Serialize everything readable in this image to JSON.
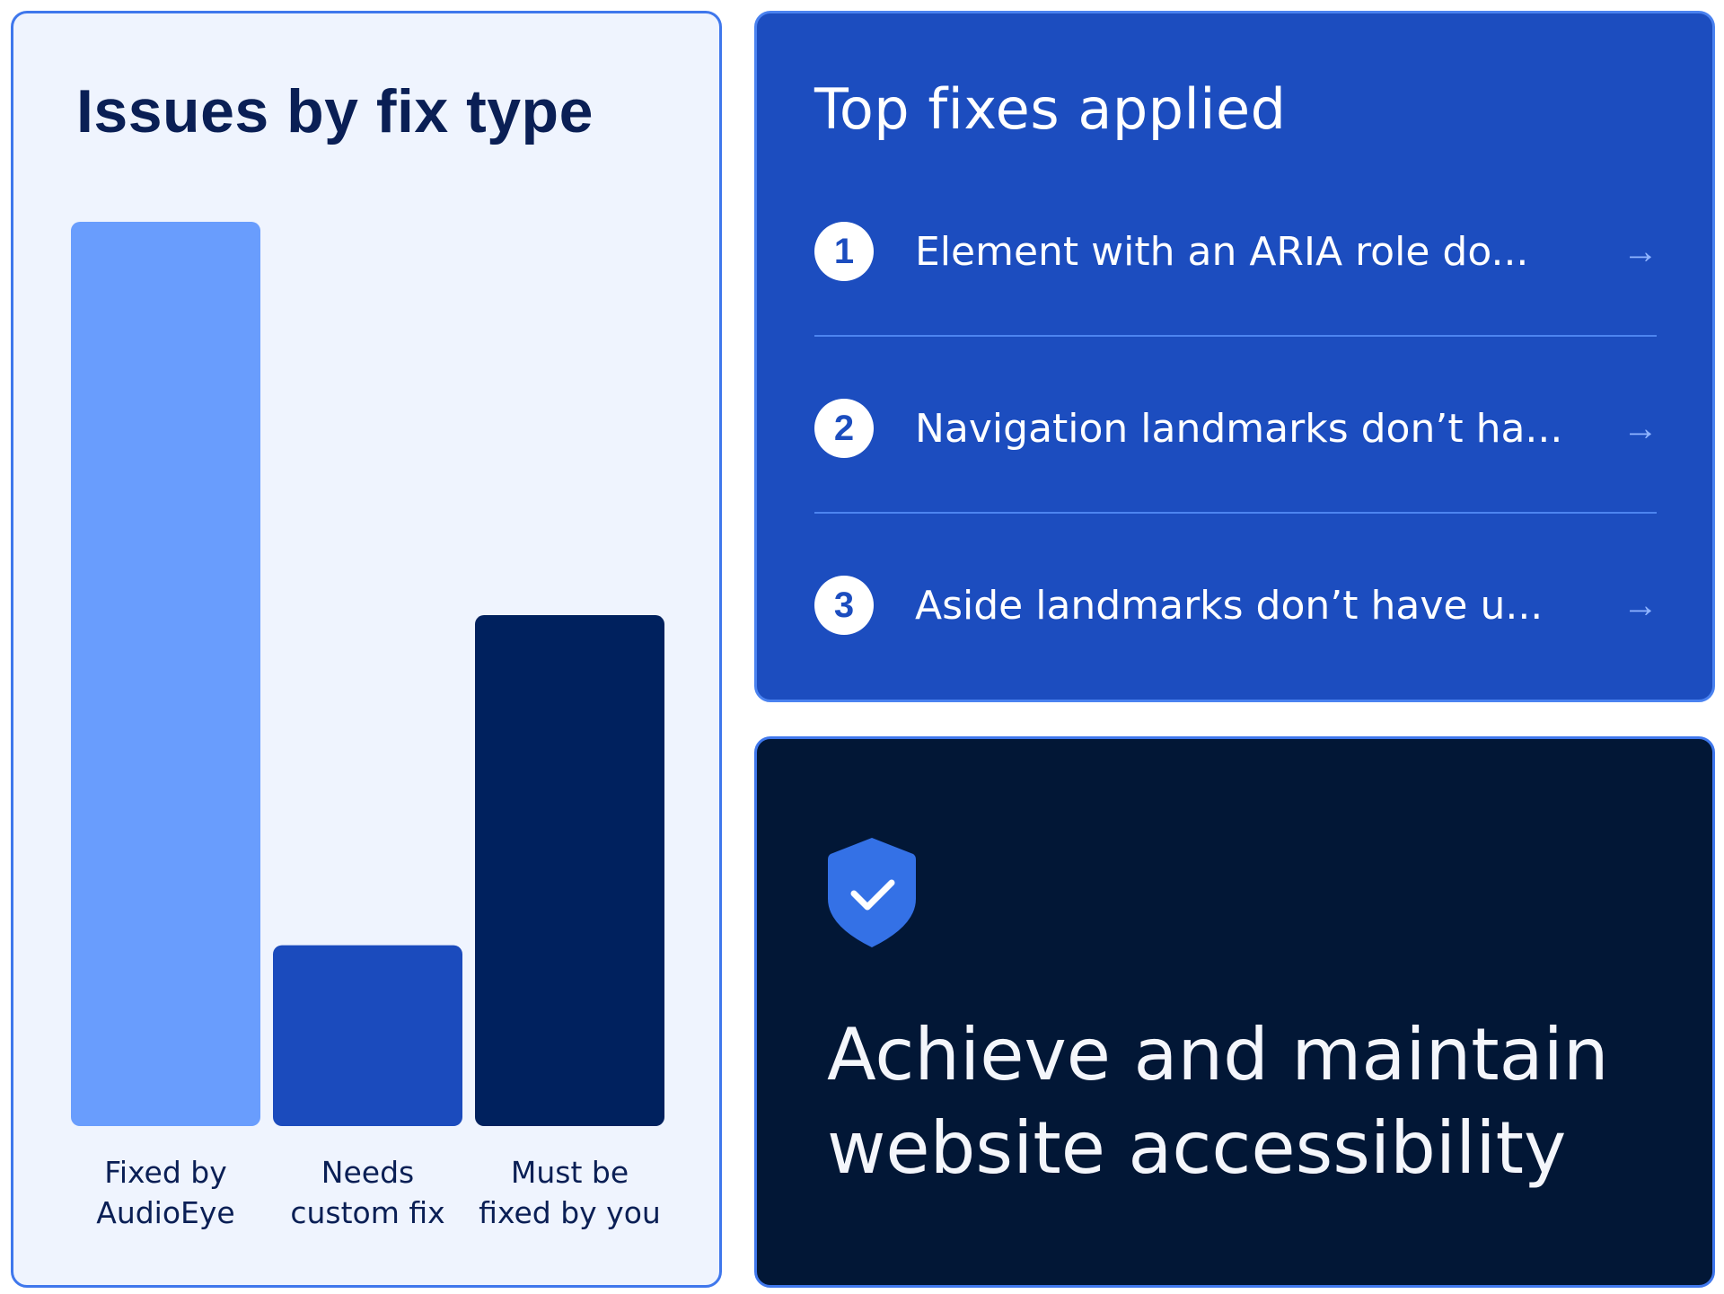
{
  "issues_panel": {
    "title": "Issues by fix type"
  },
  "chart_data": {
    "type": "bar",
    "title": "Issues by fix type",
    "categories": [
      "Fixed by AudioEye",
      "Needs custom fix",
      "Must be fixed by you"
    ],
    "category_lines": [
      [
        "Fixed by",
        "AudioEye"
      ],
      [
        "Needs",
        "custom fix"
      ],
      [
        "Must be",
        "fixed by you"
      ]
    ],
    "values": [
      100,
      20,
      56.5
    ],
    "value_unit": "relative bar height (% of tallest; no axis or values printed)",
    "colors": [
      "#699dfd",
      "#1b4bbd",
      "#00215e"
    ],
    "xlabel": "",
    "ylabel": "",
    "ylim": [
      0,
      100
    ],
    "grid": false,
    "legend": "none"
  },
  "top_fixes": {
    "title": "Top fixes applied",
    "items": [
      {
        "number": "1",
        "label": "Element with an ARIA role do...",
        "icon": "arrow-right-icon"
      },
      {
        "number": "2",
        "label": "Navigation landmarks don’t ha...",
        "icon": "arrow-right-icon"
      },
      {
        "number": "3",
        "label": "Aside landmarks don’t have u...",
        "icon": "arrow-right-icon"
      }
    ]
  },
  "promo": {
    "icon": "shield-check-icon",
    "headline_line1": "Achieve and maintain",
    "headline_line2": "website accessibility"
  },
  "colors": {
    "panel_light_bg": "#eff4fe",
    "panel_border": "#3f77ec",
    "top_fixes_bg": "#1c4dbf",
    "promo_bg": "#021736",
    "shield": "#3471e6",
    "dark_text": "#0a1f55"
  }
}
